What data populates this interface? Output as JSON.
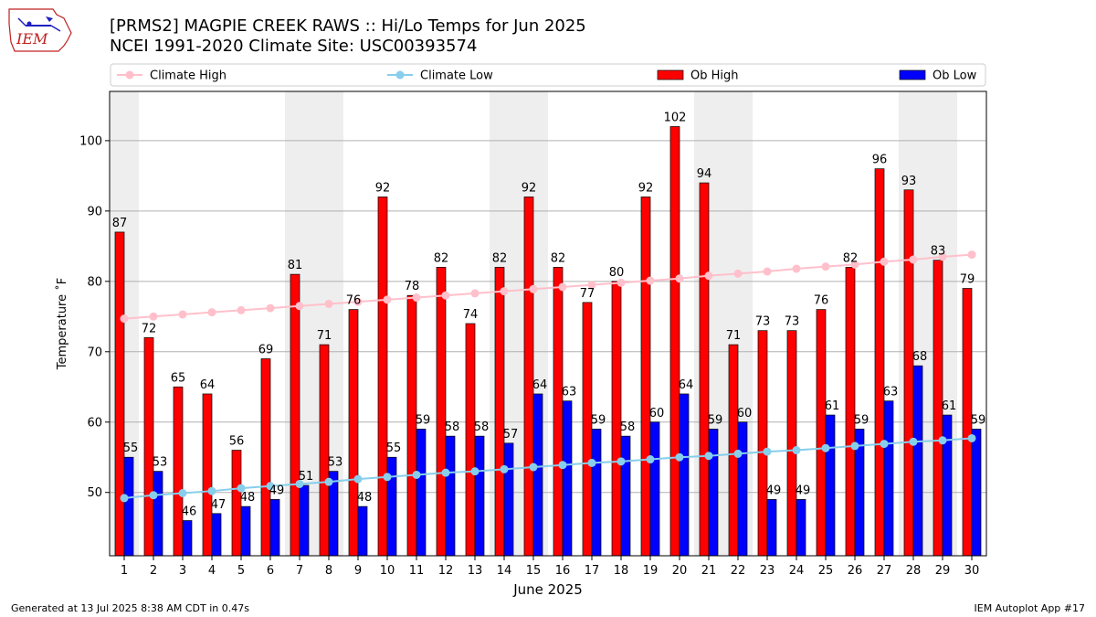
{
  "header": {
    "title_line1": "[PRMS2] MAGPIE CREEK RAWS :: Hi/Lo Temps for Jun 2025",
    "title_line2": "NCEI 1991-2020 Climate Site: USC00393574"
  },
  "logo_text": "IEM",
  "footer": {
    "generated": "Generated at 13 Jul 2025 8:38 AM CDT in 0.47s",
    "app": "IEM Autoplot App #17"
  },
  "colors": {
    "ob_high": "#ff0000",
    "ob_low": "#0000ff",
    "climate_high": "#ffc0cb",
    "climate_low": "#87ceeb",
    "weekend_shade": "#eeeeee",
    "grid": "#b0b0b0"
  },
  "chart_data": {
    "type": "bar",
    "xlabel": "June 2025",
    "ylabel": "Temperature ˚F",
    "ylim": [
      41,
      107
    ],
    "yticks": [
      50,
      60,
      70,
      80,
      90,
      100
    ],
    "grid": "horizontal",
    "legend_position": "top",
    "categories": [
      "1",
      "2",
      "3",
      "4",
      "5",
      "6",
      "7",
      "8",
      "9",
      "10",
      "11",
      "12",
      "13",
      "14",
      "15",
      "16",
      "17",
      "18",
      "19",
      "20",
      "21",
      "22",
      "23",
      "24",
      "25",
      "26",
      "27",
      "28",
      "29",
      "30"
    ],
    "shaded_days": [
      1,
      7,
      8,
      14,
      15,
      21,
      22,
      28,
      29
    ],
    "series": [
      {
        "name": "Ob High",
        "kind": "bar",
        "values": [
          87,
          72,
          65,
          64,
          56,
          69,
          81,
          71,
          76,
          92,
          78,
          82,
          74,
          82,
          92,
          82,
          77,
          80,
          92,
          102,
          94,
          71,
          73,
          73,
          76,
          82,
          96,
          93,
          83,
          79
        ]
      },
      {
        "name": "Ob Low",
        "kind": "bar",
        "values": [
          55,
          53,
          46,
          47,
          48,
          49,
          51,
          53,
          48,
          55,
          59,
          58,
          58,
          57,
          64,
          63,
          59,
          58,
          60,
          64,
          59,
          60,
          49,
          49,
          61,
          59,
          63,
          68,
          61,
          59
        ]
      },
      {
        "name": "Climate High",
        "kind": "line",
        "values": [
          74.7,
          75.0,
          75.3,
          75.6,
          75.9,
          76.2,
          76.5,
          76.8,
          77.1,
          77.4,
          77.7,
          78.0,
          78.3,
          78.6,
          78.9,
          79.2,
          79.5,
          79.8,
          80.1,
          80.4,
          80.8,
          81.1,
          81.4,
          81.8,
          82.1,
          82.4,
          82.8,
          83.1,
          83.5,
          83.8
        ]
      },
      {
        "name": "Climate Low",
        "kind": "line",
        "values": [
          49.2,
          49.6,
          49.9,
          50.2,
          50.6,
          50.9,
          51.2,
          51.5,
          51.9,
          52.2,
          52.5,
          52.8,
          53.0,
          53.3,
          53.6,
          53.9,
          54.2,
          54.4,
          54.7,
          55.0,
          55.2,
          55.5,
          55.8,
          56.0,
          56.3,
          56.6,
          56.9,
          57.2,
          57.4,
          57.7
        ]
      }
    ]
  }
}
